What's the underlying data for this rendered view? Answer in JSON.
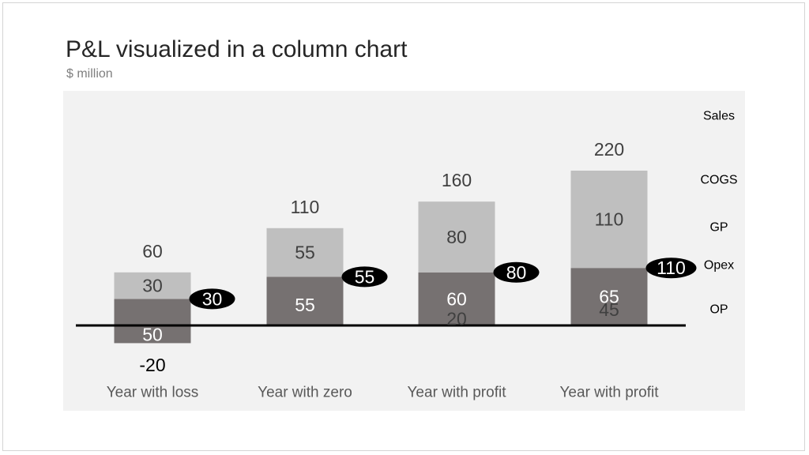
{
  "title": "P&L visualized in a column chart",
  "subtitle": "$ million",
  "colors": {
    "plot_bg": "#f2f2f2",
    "cogs": "#bfbfbf",
    "opex": "#767171",
    "op": "#2e9fdf",
    "gp_callout": "#000000",
    "axis": "#000000"
  },
  "chart_data": {
    "type": "bar",
    "categories": [
      "Year with loss",
      "Year with zero",
      "Year with profit",
      "Year with profit"
    ],
    "series": [
      {
        "name": "OP",
        "values": [
          -20,
          0,
          20,
          45
        ]
      },
      {
        "name": "Opex",
        "values": [
          50,
          55,
          60,
          65
        ]
      },
      {
        "name": "COGS",
        "values": [
          30,
          55,
          80,
          110
        ]
      }
    ],
    "totals": [
      "60",
      "110",
      "160",
      "220"
    ],
    "segment_labels": {
      "op": [
        "",
        "",
        "20",
        "45"
      ],
      "opex": [
        "50",
        "55",
        "60",
        "65"
      ],
      "cogs": [
        "30",
        "55",
        "80",
        "110"
      ]
    },
    "gp": [
      "30",
      "55",
      "80",
      "110"
    ],
    "loss_label": "-20",
    "row_labels": [
      "Sales",
      "COGS",
      "GP",
      "Opex",
      "OP"
    ],
    "ylim": [
      -20,
      220
    ],
    "legend": "right"
  }
}
